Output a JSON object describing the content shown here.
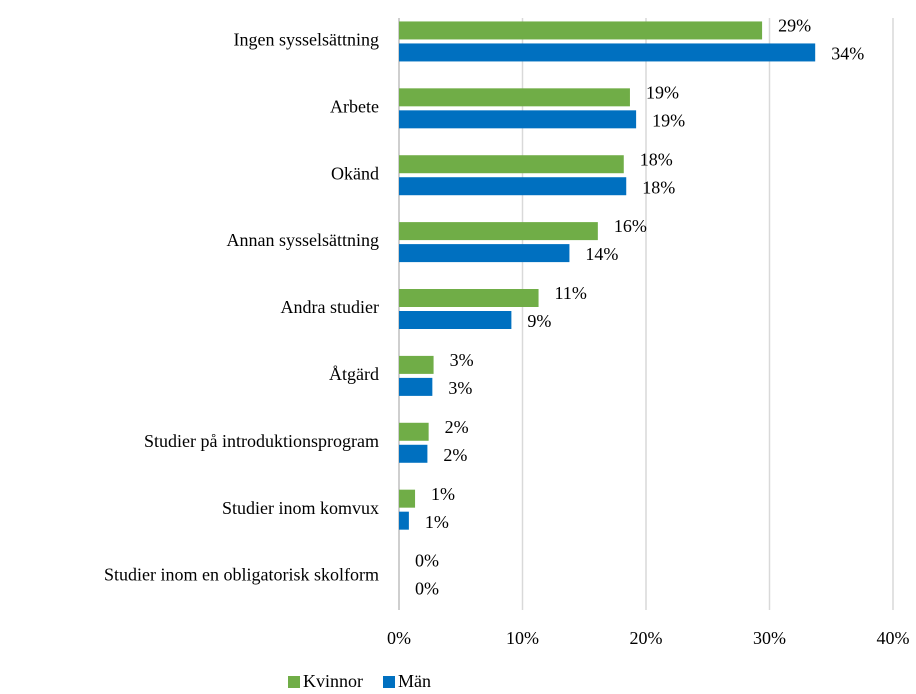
{
  "chart_data": {
    "type": "hbar",
    "categories": [
      "Ingen sysselsättning",
      "Arbete",
      "Okänd",
      "Annan sysselsättning",
      "Andra studier",
      "Åtgärd",
      "Studier på introduktionsprogram",
      "Studier inom komvux",
      "Studier inom en obligatorisk skolform"
    ],
    "series": [
      {
        "name": "Kvinnor",
        "color": "#70ad47",
        "values": [
          29.4,
          18.7,
          18.2,
          16.1,
          11.3,
          2.8,
          2.4,
          1.3,
          0
        ],
        "value_labels": [
          "29%",
          "19%",
          "18%",
          "16%",
          "11%",
          "3%",
          "2%",
          "1%",
          "0%"
        ]
      },
      {
        "name": "Män",
        "color": "#0070c0",
        "values": [
          33.7,
          19.2,
          18.4,
          13.8,
          9.1,
          2.7,
          2.3,
          0.8,
          0
        ],
        "value_labels": [
          "34%",
          "19%",
          "18%",
          "14%",
          "9%",
          "3%",
          "2%",
          "1%",
          "0%"
        ]
      }
    ],
    "xlim": [
      0,
      40
    ],
    "xticks": [
      {
        "value": 0,
        "label": "0%"
      },
      {
        "value": 10,
        "label": "10%"
      },
      {
        "value": 20,
        "label": "20%"
      },
      {
        "value": 30,
        "label": "30%"
      },
      {
        "value": 40,
        "label": "40%"
      }
    ],
    "grid": true,
    "legend": "bottom"
  }
}
